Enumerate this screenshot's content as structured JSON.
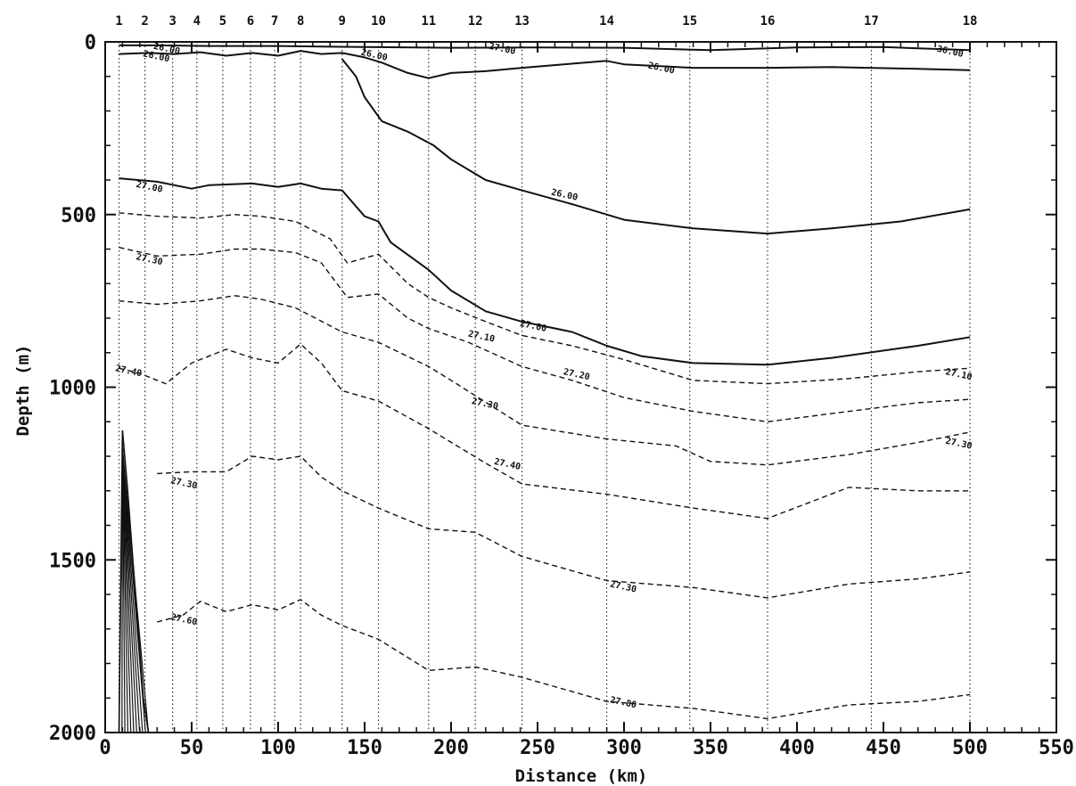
{
  "chart_data": {
    "type": "line",
    "title": "",
    "xlabel": "Distance (km)",
    "ylabel": "Depth (m)",
    "xlim": [
      0,
      550
    ],
    "ylim": [
      2000,
      0
    ],
    "y_inverted": true,
    "grid": false,
    "legend": "none",
    "x_ticks": [
      "0",
      "50",
      "100",
      "150",
      "200",
      "250",
      "300",
      "350",
      "400",
      "450",
      "500",
      "550"
    ],
    "x_tick_values": [
      0,
      50,
      100,
      150,
      200,
      250,
      300,
      350,
      400,
      450,
      500,
      550
    ],
    "y_ticks": [
      "0",
      "500",
      "1000",
      "1500",
      "2000"
    ],
    "y_tick_values": [
      0,
      500,
      1000,
      1500,
      2000
    ],
    "stations": [
      {
        "label": "1",
        "x": 8
      },
      {
        "label": "2",
        "x": 23
      },
      {
        "label": "3",
        "x": 39
      },
      {
        "label": "4",
        "x": 53
      },
      {
        "label": "5",
        "x": 68
      },
      {
        "label": "6",
        "x": 84
      },
      {
        "label": "7",
        "x": 98
      },
      {
        "label": "8",
        "x": 113
      },
      {
        "label": "9",
        "x": 137
      },
      {
        "label": "10",
        "x": 158
      },
      {
        "label": "11",
        "x": 187
      },
      {
        "label": "12",
        "x": 214
      },
      {
        "label": "13",
        "x": 241
      },
      {
        "label": "14",
        "x": 290
      },
      {
        "label": "15",
        "x": 338
      },
      {
        "label": "16",
        "x": 383
      },
      {
        "label": "17",
        "x": 443
      },
      {
        "label": "18",
        "x": 500
      }
    ],
    "series": [
      {
        "style": "solid",
        "x": [
          8,
          30,
          60,
          100,
          130,
          150,
          200,
          250,
          300,
          350,
          400,
          450,
          500
        ],
        "y": [
          10,
          10,
          12,
          12,
          14,
          15,
          17,
          16,
          17,
          24,
          16,
          15,
          24
        ]
      },
      {
        "style": "solid",
        "x": [
          8,
          25,
          40,
          55,
          70,
          85,
          100,
          113,
          125,
          137,
          150,
          160,
          175,
          187,
          200,
          220,
          241,
          265,
          290,
          300,
          340,
          383,
          420,
          470,
          500
        ],
        "y": [
          35,
          32,
          35,
          30,
          40,
          32,
          40,
          26,
          35,
          32,
          45,
          60,
          90,
          105,
          90,
          85,
          75,
          65,
          55,
          65,
          75,
          75,
          73,
          78,
          82
        ]
      },
      {
        "style": "solid",
        "x": [
          137,
          145,
          150,
          160,
          175,
          190,
          200,
          220,
          241,
          270,
          300,
          340,
          383,
          420,
          460,
          500
        ],
        "y": [
          50,
          100,
          160,
          230,
          260,
          300,
          340,
          400,
          430,
          470,
          515,
          540,
          555,
          540,
          520,
          485
        ]
      },
      {
        "style": "solid",
        "x": [
          8,
          30,
          50,
          60,
          85,
          100,
          113,
          125,
          137,
          150,
          158,
          165,
          187,
          200,
          220,
          241,
          270,
          290,
          310,
          340,
          383,
          420,
          470,
          500
        ],
        "y": [
          395,
          405,
          425,
          415,
          410,
          420,
          410,
          425,
          430,
          505,
          520,
          580,
          660,
          720,
          780,
          810,
          840,
          880,
          910,
          930,
          935,
          915,
          880,
          855
        ]
      },
      {
        "style": "dashed",
        "x": [
          8,
          30,
          55,
          75,
          90,
          110,
          130,
          140,
          158,
          175,
          187,
          200,
          220,
          241,
          270,
          300,
          340,
          383,
          430,
          470,
          500
        ],
        "y": [
          495,
          505,
          510,
          500,
          505,
          520,
          570,
          640,
          615,
          700,
          740,
          770,
          810,
          850,
          880,
          920,
          980,
          990,
          975,
          955,
          945
        ]
      },
      {
        "style": "dashed",
        "x": [
          8,
          30,
          55,
          75,
          90,
          110,
          125,
          140,
          158,
          175,
          187,
          210,
          241,
          270,
          300,
          340,
          383,
          430,
          470,
          500
        ],
        "y": [
          595,
          620,
          615,
          600,
          600,
          610,
          640,
          740,
          730,
          800,
          830,
          870,
          940,
          980,
          1030,
          1070,
          1100,
          1070,
          1045,
          1035
        ]
      },
      {
        "style": "dashed",
        "x": [
          8,
          30,
          55,
          75,
          90,
          110,
          137,
          158,
          187,
          200,
          241,
          290,
          330,
          350,
          383,
          430,
          470,
          500
        ],
        "y": [
          750,
          760,
          750,
          735,
          745,
          770,
          840,
          870,
          940,
          980,
          1110,
          1150,
          1170,
          1215,
          1225,
          1195,
          1160,
          1130
        ]
      },
      {
        "style": "dashed",
        "x": [
          8,
          20,
          35,
          50,
          70,
          85,
          100,
          113,
          125,
          137,
          158,
          187,
          220,
          241,
          290,
          340,
          383,
          430,
          470,
          500
        ],
        "y": [
          945,
          960,
          990,
          930,
          890,
          915,
          930,
          875,
          930,
          1010,
          1040,
          1120,
          1220,
          1280,
          1310,
          1350,
          1380,
          1290,
          1300,
          1300
        ]
      },
      {
        "style": "dashed",
        "x": [
          30,
          50,
          70,
          85,
          100,
          113,
          125,
          137,
          158,
          187,
          214,
          241,
          290,
          340,
          383,
          430,
          470,
          500
        ],
        "y": [
          1250,
          1245,
          1245,
          1200,
          1210,
          1200,
          1260,
          1300,
          1350,
          1410,
          1420,
          1490,
          1560,
          1580,
          1610,
          1570,
          1555,
          1535
        ]
      },
      {
        "style": "dashed",
        "x": [
          30,
          45,
          55,
          70,
          85,
          100,
          113,
          125,
          137,
          158,
          187,
          214,
          241,
          290,
          340,
          383,
          430,
          470,
          500
        ],
        "y": [
          1680,
          1660,
          1620,
          1650,
          1630,
          1645,
          1615,
          1660,
          1690,
          1730,
          1820,
          1810,
          1840,
          1910,
          1930,
          1960,
          1920,
          1910,
          1890
        ]
      }
    ],
    "annotations": [
      {
        "text": "26.00",
        "x": 28,
        "y": 12
      },
      {
        "text": "26.00",
        "x": 22,
        "y": 34
      },
      {
        "text": "26.00",
        "x": 148,
        "y": 30
      },
      {
        "text": "27.00",
        "x": 222,
        "y": 12
      },
      {
        "text": "26.00",
        "x": 314,
        "y": 68
      },
      {
        "text": "36.00",
        "x": 481,
        "y": 20
      },
      {
        "text": "26.00",
        "x": 258,
        "y": 435
      },
      {
        "text": "27.00",
        "x": 18,
        "y": 412
      },
      {
        "text": "27.30",
        "x": 18,
        "y": 622
      },
      {
        "text": "27.00",
        "x": 240,
        "y": 815
      },
      {
        "text": "27.10",
        "x": 210,
        "y": 845
      },
      {
        "text": "27.20",
        "x": 265,
        "y": 955
      },
      {
        "text": "27.10",
        "x": 486,
        "y": 955
      },
      {
        "text": "27.30",
        "x": 212,
        "y": 1040
      },
      {
        "text": "27.40",
        "x": 6,
        "y": 945
      },
      {
        "text": "27.30",
        "x": 486,
        "y": 1155
      },
      {
        "text": "27.40",
        "x": 225,
        "y": 1215
      },
      {
        "text": "27.30",
        "x": 38,
        "y": 1270
      },
      {
        "text": "27.30",
        "x": 292,
        "y": 1570
      },
      {
        "text": "27.60",
        "x": 38,
        "y": 1665
      },
      {
        "text": "27.80",
        "x": 292,
        "y": 1905
      }
    ],
    "bottom_topography": {
      "x": [
        8,
        10,
        13,
        16,
        19,
        22,
        25
      ],
      "y": [
        2000,
        1125,
        1300,
        1500,
        1700,
        1900,
        2000
      ]
    }
  }
}
